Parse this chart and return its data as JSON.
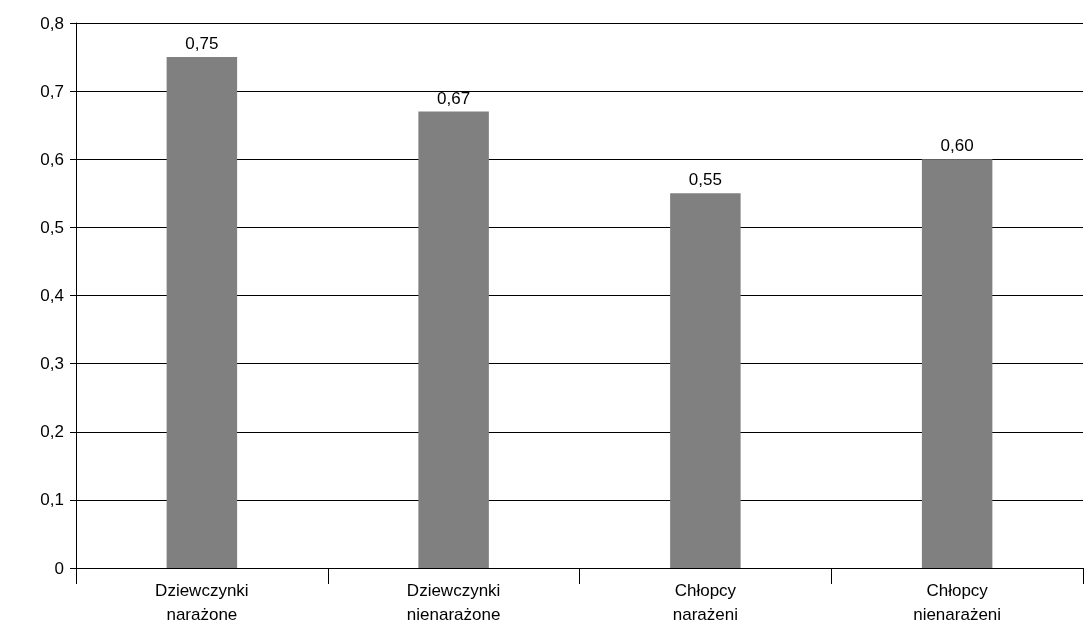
{
  "chart_data": {
    "type": "bar",
    "categories": [
      "Dziewczynki\nnarażone",
      "Dziewczynki\nnienarażone",
      "Chłopcy\nnarażeni",
      "Chłopcy\nnienarażeni"
    ],
    "values": [
      0.75,
      0.67,
      0.55,
      0.6
    ],
    "value_labels": [
      "0,75",
      "0,67",
      "0,55",
      "0,60"
    ],
    "color": "#808080",
    "ylim": [
      0,
      0.8
    ],
    "yticks": [
      0,
      {
        "value": 0.1,
        "label": "0,1"
      },
      {
        "value": 0.2,
        "label": "0,2"
      },
      {
        "value": 0.3,
        "label": "0,3"
      },
      {
        "value": 0.4,
        "label": "0,4"
      },
      {
        "value": 0.5,
        "label": "0,5"
      },
      {
        "value": 0.6,
        "label": "0,6"
      },
      {
        "value": 0.7,
        "label": "0,7"
      },
      {
        "value": 0.8,
        "label": "0,8"
      }
    ],
    "grid": "y"
  }
}
